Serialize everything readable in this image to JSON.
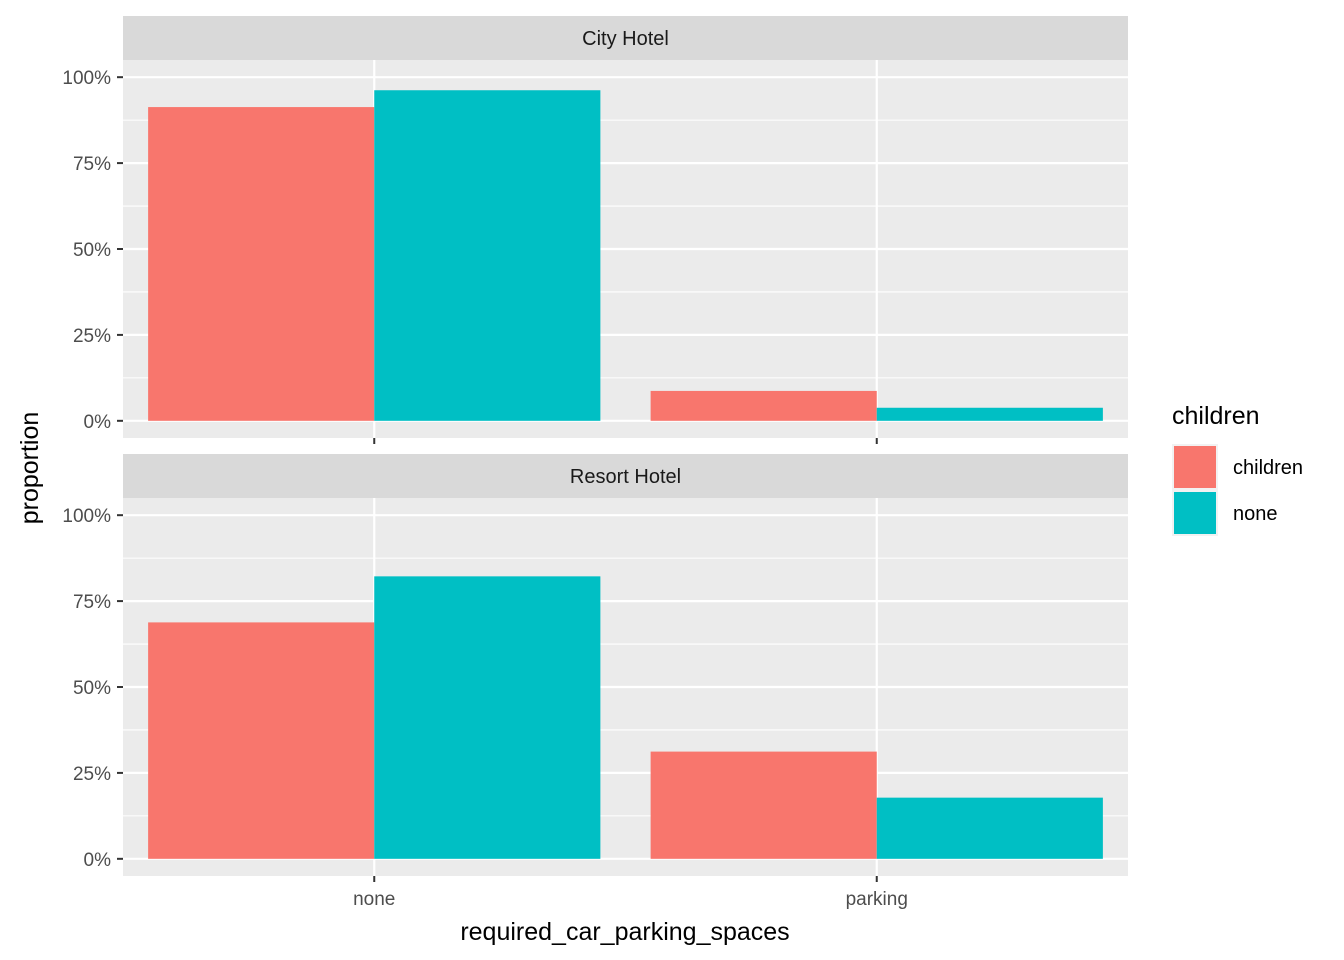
{
  "chart_data": {
    "type": "bar",
    "xlabel": "required_car_parking_spaces",
    "ylabel": "proportion",
    "categories": [
      "none",
      "parking"
    ],
    "ylim": [
      0,
      1.05
    ],
    "y_ticks": [
      0,
      0.25,
      0.5,
      0.75,
      1.0
    ],
    "y_tick_labels": [
      "0%",
      "25%",
      "50%",
      "75%",
      "100%"
    ],
    "grid": true,
    "legend": {
      "title": "children",
      "position": "right",
      "entries": [
        {
          "name": "children",
          "color": "#F8766D"
        },
        {
          "name": "none",
          "color": "#00BFC4"
        }
      ]
    },
    "facets": [
      {
        "label": "City Hotel",
        "series": [
          {
            "name": "children",
            "values": [
              0.913,
              0.087
            ]
          },
          {
            "name": "none",
            "values": [
              0.962,
              0.038
            ]
          }
        ]
      },
      {
        "label": "Resort Hotel",
        "series": [
          {
            "name": "children",
            "values": [
              0.688,
              0.312
            ]
          },
          {
            "name": "none",
            "values": [
              0.822,
              0.178
            ]
          }
        ]
      }
    ]
  },
  "colors": {
    "panel_bg": "#EBEBEB",
    "grid_major": "#FFFFFF",
    "strip_bg": "#D9D9D9",
    "children": "#F8766D",
    "none": "#00BFC4"
  }
}
